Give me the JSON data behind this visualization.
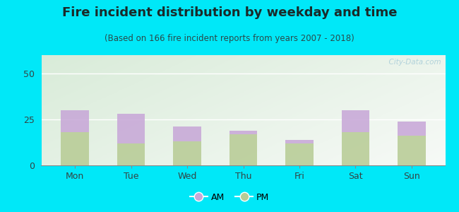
{
  "title": "Fire incident distribution by weekday and time",
  "subtitle": "(Based on 166 fire incident reports from years 2007 - 2018)",
  "categories": [
    "Mon",
    "Tue",
    "Wed",
    "Thu",
    "Fri",
    "Sat",
    "Sun"
  ],
  "pm_values": [
    18,
    12,
    13,
    17,
    12,
    18,
    16
  ],
  "am_values": [
    12,
    16,
    8,
    2,
    2,
    12,
    8
  ],
  "am_color": "#c8a8d8",
  "pm_color": "#b8cc96",
  "bar_width": 0.5,
  "ylim": [
    0,
    60
  ],
  "yticks": [
    0,
    25,
    50
  ],
  "outer_bg": "#00e8f8",
  "title_fontsize": 13,
  "subtitle_fontsize": 8.5,
  "title_color": "#1a2a2a",
  "subtitle_color": "#2a4a4a",
  "watermark": "  City-Data.com",
  "watermark_color": "#a8ccd8"
}
